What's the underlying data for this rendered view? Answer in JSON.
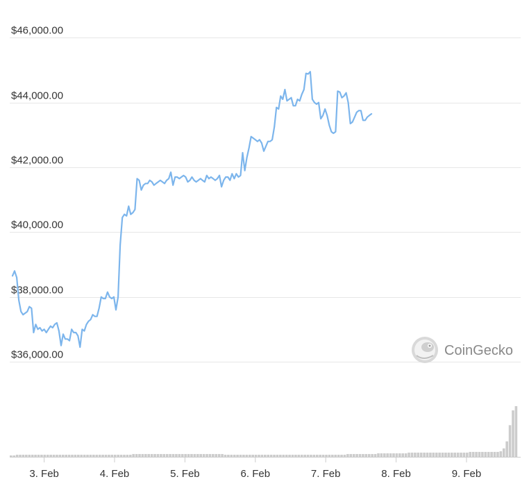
{
  "watermark": {
    "text": "CoinGecko",
    "icon": "gecko-logo-icon"
  },
  "colors": {
    "line": "#7cb5ec",
    "grid": "#e6e6e6",
    "volume": "#cccccc",
    "axis_text": "#333333"
  },
  "chart_data": {
    "type": "line",
    "grid": true,
    "y_ticks": [
      "$46,000.00",
      "$44,000.00",
      "$42,000.00",
      "$40,000.00",
      "$38,000.00",
      "$36,000.00"
    ],
    "y_tick_values": [
      46000,
      44000,
      42000,
      40000,
      38000,
      36000
    ],
    "ylim": [
      35700,
      46350
    ],
    "x_ticks": [
      "3. Feb",
      "4. Feb",
      "5. Feb",
      "6. Feb",
      "7. Feb",
      "8. Feb",
      "9. Feb"
    ],
    "x_tick_values": [
      3,
      4,
      5,
      6,
      7,
      8,
      9
    ],
    "xlim": [
      2.55,
      9.75
    ],
    "series": [
      {
        "values": [
          [
            2.55,
            38650
          ],
          [
            2.58,
            38800
          ],
          [
            2.61,
            38600
          ],
          [
            2.64,
            37900
          ],
          [
            2.67,
            37550
          ],
          [
            2.7,
            37450
          ],
          [
            2.73,
            37500
          ],
          [
            2.76,
            37550
          ],
          [
            2.79,
            37700
          ],
          [
            2.82,
            37650
          ],
          [
            2.85,
            36900
          ],
          [
            2.88,
            37150
          ],
          [
            2.91,
            37000
          ],
          [
            2.94,
            37050
          ],
          [
            2.97,
            36950
          ],
          [
            3.0,
            37000
          ],
          [
            3.03,
            36900
          ],
          [
            3.06,
            37000
          ],
          [
            3.09,
            37100
          ],
          [
            3.12,
            37050
          ],
          [
            3.15,
            37150
          ],
          [
            3.18,
            37200
          ],
          [
            3.21,
            36950
          ],
          [
            3.24,
            36500
          ],
          [
            3.27,
            36850
          ],
          [
            3.3,
            36700
          ],
          [
            3.33,
            36700
          ],
          [
            3.36,
            36650
          ],
          [
            3.39,
            37000
          ],
          [
            3.42,
            36900
          ],
          [
            3.45,
            36900
          ],
          [
            3.48,
            36800
          ],
          [
            3.51,
            36450
          ],
          [
            3.54,
            37000
          ],
          [
            3.57,
            36950
          ],
          [
            3.6,
            37150
          ],
          [
            3.63,
            37250
          ],
          [
            3.66,
            37300
          ],
          [
            3.69,
            37450
          ],
          [
            3.72,
            37400
          ],
          [
            3.75,
            37400
          ],
          [
            3.78,
            37650
          ],
          [
            3.81,
            38000
          ],
          [
            3.84,
            37950
          ],
          [
            3.87,
            37950
          ],
          [
            3.9,
            38150
          ],
          [
            3.93,
            38000
          ],
          [
            3.96,
            37950
          ],
          [
            3.99,
            38000
          ],
          [
            4.02,
            37600
          ],
          [
            4.05,
            38000
          ],
          [
            4.08,
            39600
          ],
          [
            4.11,
            40450
          ],
          [
            4.14,
            40550
          ],
          [
            4.17,
            40500
          ],
          [
            4.2,
            40800
          ],
          [
            4.23,
            40550
          ],
          [
            4.26,
            40600
          ],
          [
            4.29,
            40700
          ],
          [
            4.32,
            41650
          ],
          [
            4.35,
            41600
          ],
          [
            4.38,
            41300
          ],
          [
            4.41,
            41450
          ],
          [
            4.44,
            41500
          ],
          [
            4.47,
            41500
          ],
          [
            4.5,
            41600
          ],
          [
            4.53,
            41550
          ],
          [
            4.56,
            41450
          ],
          [
            4.59,
            41500
          ],
          [
            4.62,
            41550
          ],
          [
            4.65,
            41600
          ],
          [
            4.68,
            41550
          ],
          [
            4.71,
            41500
          ],
          [
            4.74,
            41600
          ],
          [
            4.77,
            41650
          ],
          [
            4.8,
            41850
          ],
          [
            4.83,
            41450
          ],
          [
            4.86,
            41700
          ],
          [
            4.89,
            41700
          ],
          [
            4.92,
            41650
          ],
          [
            4.95,
            41700
          ],
          [
            4.98,
            41750
          ],
          [
            5.01,
            41700
          ],
          [
            5.04,
            41550
          ],
          [
            5.07,
            41600
          ],
          [
            5.1,
            41700
          ],
          [
            5.13,
            41600
          ],
          [
            5.16,
            41550
          ],
          [
            5.19,
            41600
          ],
          [
            5.22,
            41650
          ],
          [
            5.25,
            41600
          ],
          [
            5.28,
            41550
          ],
          [
            5.31,
            41750
          ],
          [
            5.34,
            41650
          ],
          [
            5.37,
            41700
          ],
          [
            5.4,
            41650
          ],
          [
            5.43,
            41600
          ],
          [
            5.46,
            41650
          ],
          [
            5.49,
            41750
          ],
          [
            5.52,
            41400
          ],
          [
            5.55,
            41600
          ],
          [
            5.58,
            41700
          ],
          [
            5.61,
            41700
          ],
          [
            5.64,
            41600
          ],
          [
            5.67,
            41800
          ],
          [
            5.7,
            41650
          ],
          [
            5.73,
            41800
          ],
          [
            5.76,
            41700
          ],
          [
            5.79,
            41750
          ],
          [
            5.82,
            42450
          ],
          [
            5.85,
            41900
          ],
          [
            5.88,
            42300
          ],
          [
            5.91,
            42600
          ],
          [
            5.94,
            42950
          ],
          [
            5.97,
            42900
          ],
          [
            6.0,
            42850
          ],
          [
            6.03,
            42800
          ],
          [
            6.06,
            42850
          ],
          [
            6.09,
            42750
          ],
          [
            6.12,
            42500
          ],
          [
            6.15,
            42650
          ],
          [
            6.18,
            42800
          ],
          [
            6.21,
            42800
          ],
          [
            6.24,
            42850
          ],
          [
            6.27,
            43250
          ],
          [
            6.3,
            43850
          ],
          [
            6.33,
            43800
          ],
          [
            6.36,
            44200
          ],
          [
            6.39,
            44100
          ],
          [
            6.42,
            44400
          ],
          [
            6.45,
            44050
          ],
          [
            6.48,
            44100
          ],
          [
            6.51,
            44150
          ],
          [
            6.54,
            43900
          ],
          [
            6.57,
            43900
          ],
          [
            6.6,
            44100
          ],
          [
            6.63,
            44050
          ],
          [
            6.66,
            44250
          ],
          [
            6.69,
            44400
          ],
          [
            6.72,
            44900
          ],
          [
            6.75,
            44880
          ],
          [
            6.78,
            44950
          ],
          [
            6.81,
            44100
          ],
          [
            6.84,
            44000
          ],
          [
            6.87,
            43950
          ],
          [
            6.9,
            44000
          ],
          [
            6.93,
            43500
          ],
          [
            6.96,
            43600
          ],
          [
            6.99,
            43800
          ],
          [
            7.02,
            43600
          ],
          [
            7.05,
            43300
          ],
          [
            7.08,
            43100
          ],
          [
            7.11,
            43050
          ],
          [
            7.14,
            43100
          ],
          [
            7.17,
            44350
          ],
          [
            7.2,
            44320
          ],
          [
            7.23,
            44150
          ],
          [
            7.26,
            44200
          ],
          [
            7.29,
            44300
          ],
          [
            7.32,
            44000
          ],
          [
            7.35,
            43350
          ],
          [
            7.38,
            43400
          ],
          [
            7.41,
            43550
          ],
          [
            7.44,
            43700
          ],
          [
            7.47,
            43750
          ],
          [
            7.5,
            43750
          ],
          [
            7.53,
            43450
          ],
          [
            7.56,
            43450
          ],
          [
            7.59,
            43550
          ],
          [
            7.62,
            43600
          ],
          [
            7.65,
            43650
          ]
        ]
      }
    ],
    "volume_relative": [
      0.02,
      0.02,
      0.03,
      0.03,
      0.03,
      0.03,
      0.03,
      0.03,
      0.03,
      0.03,
      0.03,
      0.03,
      0.03,
      0.03,
      0.03,
      0.03,
      0.03,
      0.03,
      0.03,
      0.03,
      0.03,
      0.03,
      0.03,
      0.03,
      0.03,
      0.03,
      0.03,
      0.03,
      0.03,
      0.03,
      0.03,
      0.03,
      0.03,
      0.03,
      0.03,
      0.03,
      0.03,
      0.03,
      0.03,
      0.03,
      0.04,
      0.04,
      0.04,
      0.04,
      0.04,
      0.04,
      0.04,
      0.04,
      0.04,
      0.04,
      0.04,
      0.04,
      0.04,
      0.04,
      0.04,
      0.04,
      0.04,
      0.04,
      0.04,
      0.04,
      0.04,
      0.04,
      0.04,
      0.04,
      0.04,
      0.04,
      0.04,
      0.04,
      0.04,
      0.04,
      0.03,
      0.03,
      0.03,
      0.03,
      0.03,
      0.03,
      0.03,
      0.03,
      0.03,
      0.03,
      0.03,
      0.03,
      0.03,
      0.03,
      0.03,
      0.03,
      0.03,
      0.03,
      0.03,
      0.03,
      0.03,
      0.03,
      0.03,
      0.03,
      0.03,
      0.03,
      0.03,
      0.03,
      0.03,
      0.03,
      0.03,
      0.03,
      0.03,
      0.03,
      0.03,
      0.03,
      0.03,
      0.03,
      0.03,
      0.03,
      0.04,
      0.04,
      0.04,
      0.04,
      0.04,
      0.04,
      0.04,
      0.04,
      0.04,
      0.04,
      0.05,
      0.05,
      0.05,
      0.05,
      0.05,
      0.05,
      0.05,
      0.05,
      0.05,
      0.05,
      0.06,
      0.06,
      0.06,
      0.06,
      0.06,
      0.06,
      0.06,
      0.06,
      0.06,
      0.06,
      0.06,
      0.06,
      0.06,
      0.06,
      0.06,
      0.06,
      0.06,
      0.06,
      0.06,
      0.06,
      0.07,
      0.07,
      0.07,
      0.07,
      0.07,
      0.07,
      0.07,
      0.07,
      0.07,
      0.07,
      0.08,
      0.12,
      0.22,
      0.45,
      0.66,
      0.72
    ]
  }
}
